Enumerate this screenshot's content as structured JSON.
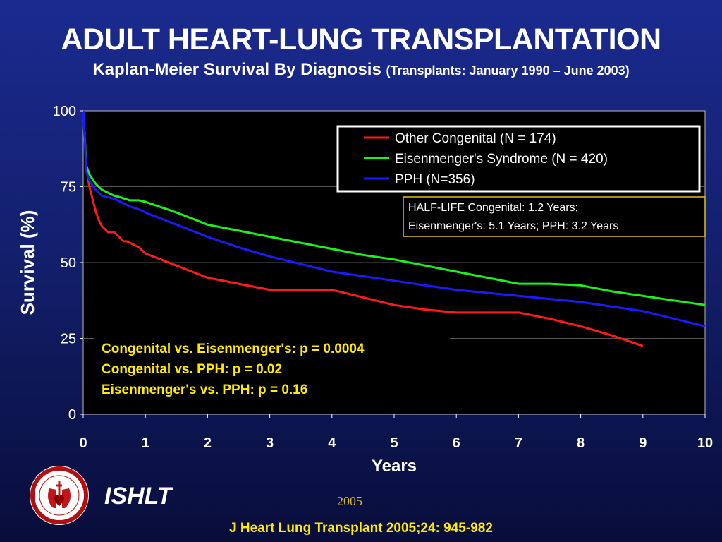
{
  "header": {
    "title": "ADULT HEART-LUNG TRANSPLANTATION",
    "subtitle": "Kaplan-Meier Survival By Diagnosis",
    "subtitle_note": "(Transplants: January 1990 – June 2003)"
  },
  "footer": {
    "society": "ISHLT",
    "year": "2005",
    "citation": "J Heart Lung Transplant 2005;24: 945-982",
    "logo_icon": "ishlt-logo-icon"
  },
  "chart_data": {
    "type": "line",
    "xlabel": "Years",
    "ylabel": "Survival (%)",
    "xlim": [
      0,
      10
    ],
    "ylim": [
      0,
      100
    ],
    "xticks": [
      "0",
      "1",
      "2",
      "3",
      "4",
      "5",
      "6",
      "7",
      "8",
      "9",
      "10"
    ],
    "yticks": [
      "0",
      "25",
      "50",
      "75",
      "100"
    ],
    "grid": "horizontal",
    "legend_position": "top-right",
    "series": [
      {
        "name": "Other Congenital (N = 174)",
        "color": "#ff1a1a",
        "x": [
          0,
          0.05,
          0.1,
          0.15,
          0.2,
          0.25,
          0.3,
          0.35,
          0.4,
          0.5,
          0.55,
          0.6,
          0.65,
          0.7,
          0.8,
          0.9,
          0.95,
          1.0,
          1.5,
          2.0,
          2.5,
          3.0,
          3.5,
          4.0,
          4.5,
          5.0,
          5.5,
          6.0,
          6.5,
          7.0,
          7.5,
          8.0,
          8.5,
          9.0
        ],
        "y": [
          100,
          81,
          75,
          71,
          67,
          64,
          62,
          61,
          60,
          60,
          59,
          58,
          57,
          57,
          56,
          55,
          54,
          53,
          49,
          45,
          43,
          41,
          41,
          41,
          38.5,
          36,
          34.5,
          33.5,
          33.5,
          33.5,
          31.5,
          29,
          26,
          22.5
        ]
      },
      {
        "name": "Eisenmenger's Syndrome  (N = 420)",
        "color": "#19f219",
        "x": [
          0,
          0.05,
          0.1,
          0.2,
          0.3,
          0.5,
          0.6,
          0.75,
          0.9,
          1.0,
          1.5,
          2.0,
          2.5,
          3.0,
          3.5,
          4.0,
          4.5,
          5.0,
          5.5,
          6.0,
          6.5,
          7.0,
          7.5,
          8.0,
          8.5,
          9.0,
          9.5,
          10.0
        ],
        "y": [
          100,
          82,
          79,
          76,
          74,
          72,
          71.5,
          70.5,
          70.5,
          70,
          66.5,
          62.5,
          60.5,
          58.5,
          56.5,
          54.5,
          52.5,
          51,
          49,
          47,
          45,
          43,
          43,
          42.5,
          40.5,
          39,
          37.5,
          36
        ]
      },
      {
        "name": "PPH (N=356)",
        "color": "#1a1aff",
        "x": [
          0,
          0.05,
          0.1,
          0.2,
          0.3,
          0.5,
          0.6,
          0.75,
          0.9,
          1.0,
          1.5,
          2.0,
          2.5,
          3.0,
          3.5,
          4.0,
          4.5,
          5.0,
          5.5,
          6.0,
          6.5,
          7.0,
          7.5,
          8.0,
          8.5,
          9.0,
          9.5,
          10.0
        ],
        "y": [
          100,
          80,
          77,
          74,
          72,
          71,
          70,
          68.5,
          67.5,
          66.5,
          62.5,
          58.5,
          55,
          52,
          49.5,
          47,
          45.5,
          44,
          42.5,
          41,
          40,
          39,
          38,
          37,
          35.5,
          34,
          31.5,
          29
        ]
      }
    ],
    "annotations": {
      "half_life_line1": "HALF-LIFE  Congenital: 1.2 Years;",
      "half_life_line2": "Eisenmenger's: 5.1 Years; PPH: 3.2 Years",
      "pvalues": [
        "Congenital vs. Eisenmenger's: p = 0.0004",
        "Congenital vs. PPH: p = 0.02",
        "Eisenmenger's vs. PPH: p = 0.16"
      ]
    }
  }
}
